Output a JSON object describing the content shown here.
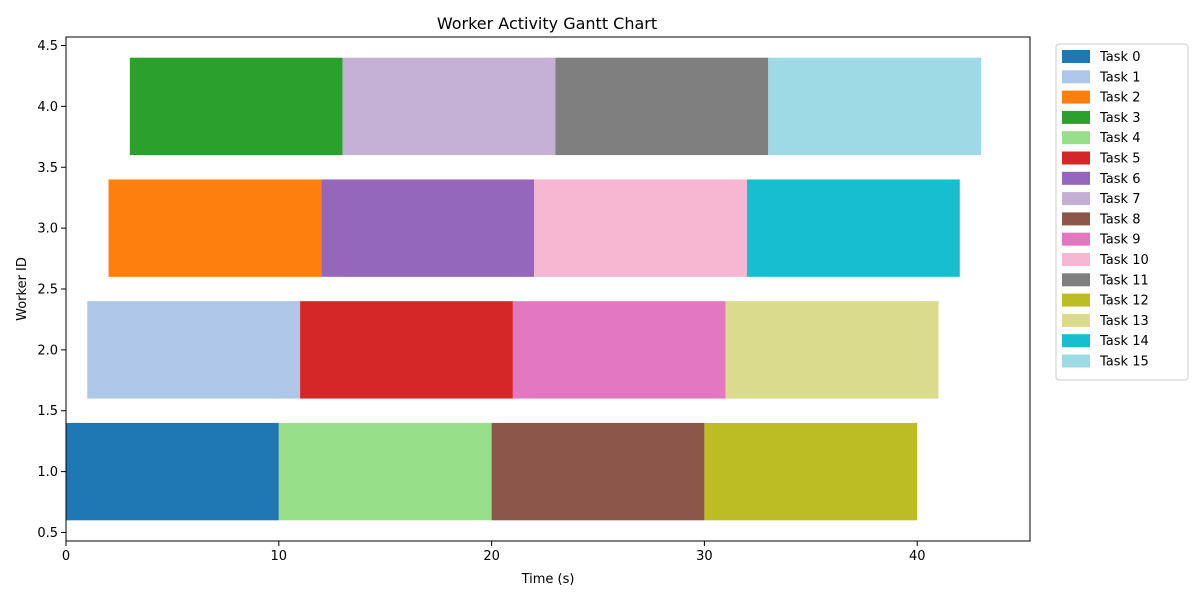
{
  "chart_data": {
    "type": "gantt",
    "title": "Worker Activity Gantt Chart",
    "xlabel": "Time (s)",
    "ylabel": "Worker ID",
    "xlim": [
      0,
      45.3
    ],
    "ylim": [
      0.43,
      4.57
    ],
    "xticks": [
      0,
      10,
      20,
      30,
      40
    ],
    "xtick_labels": [
      "0",
      "10",
      "20",
      "30",
      "40"
    ],
    "yticks": [
      0.5,
      1.0,
      1.5,
      2.0,
      2.5,
      3.0,
      3.5,
      4.0,
      4.5
    ],
    "ytick_labels": [
      "0.5",
      "1.0",
      "1.5",
      "2.0",
      "2.5",
      "3.0",
      "3.5",
      "4.0",
      "4.5"
    ],
    "grid": false,
    "legend_position": "outside-upper-right",
    "bar_height": 0.8,
    "series": [
      {
        "name": "Task 0",
        "color": "#1f77b4"
      },
      {
        "name": "Task 1",
        "color": "#aec7e8"
      },
      {
        "name": "Task 2",
        "color": "#ff7f0e"
      },
      {
        "name": "Task 3",
        "color": "#2ca02c"
      },
      {
        "name": "Task 4",
        "color": "#98df8a"
      },
      {
        "name": "Task 5",
        "color": "#d62728"
      },
      {
        "name": "Task 6",
        "color": "#9467bd"
      },
      {
        "name": "Task 7",
        "color": "#c5b0d5"
      },
      {
        "name": "Task 8",
        "color": "#8c564b"
      },
      {
        "name": "Task 9",
        "color": "#e377c2"
      },
      {
        "name": "Task 10",
        "color": "#f7b6d2"
      },
      {
        "name": "Task 11",
        "color": "#7f7f7f"
      },
      {
        "name": "Task 12",
        "color": "#bcbd22"
      },
      {
        "name": "Task 13",
        "color": "#dbdb8d"
      },
      {
        "name": "Task 14",
        "color": "#17becf"
      },
      {
        "name": "Task 15",
        "color": "#9edae5"
      }
    ],
    "bars": [
      {
        "worker": 1,
        "task": 0,
        "start": 0.0,
        "end": 10.0
      },
      {
        "worker": 1,
        "task": 4,
        "start": 10.0,
        "end": 20.0
      },
      {
        "worker": 1,
        "task": 8,
        "start": 20.0,
        "end": 30.0
      },
      {
        "worker": 1,
        "task": 12,
        "start": 30.0,
        "end": 40.0
      },
      {
        "worker": 2,
        "task": 1,
        "start": 1.0,
        "end": 11.0
      },
      {
        "worker": 2,
        "task": 5,
        "start": 11.0,
        "end": 21.0
      },
      {
        "worker": 2,
        "task": 9,
        "start": 21.0,
        "end": 31.0
      },
      {
        "worker": 2,
        "task": 13,
        "start": 31.0,
        "end": 41.0
      },
      {
        "worker": 3,
        "task": 2,
        "start": 2.0,
        "end": 12.0
      },
      {
        "worker": 3,
        "task": 6,
        "start": 12.0,
        "end": 22.0
      },
      {
        "worker": 3,
        "task": 10,
        "start": 22.0,
        "end": 32.0
      },
      {
        "worker": 3,
        "task": 14,
        "start": 32.0,
        "end": 42.0
      },
      {
        "worker": 4,
        "task": 3,
        "start": 3.0,
        "end": 13.0
      },
      {
        "worker": 4,
        "task": 7,
        "start": 13.0,
        "end": 23.0
      },
      {
        "worker": 4,
        "task": 11,
        "start": 23.0,
        "end": 33.0
      },
      {
        "worker": 4,
        "task": 15,
        "start": 33.0,
        "end": 43.0
      }
    ]
  }
}
